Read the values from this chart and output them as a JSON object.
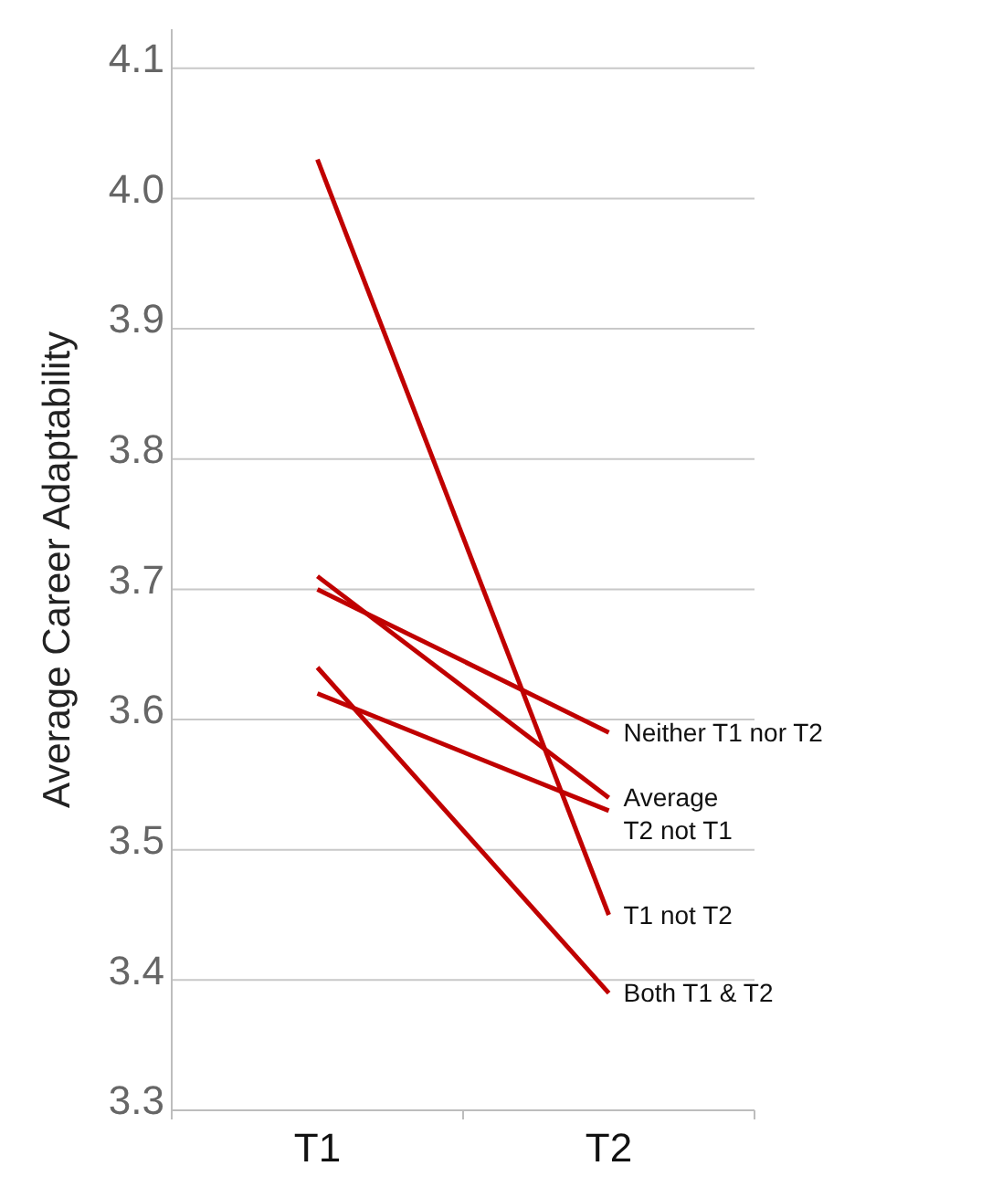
{
  "chart_data": {
    "type": "line",
    "ylabel": "Average Career Adaptability",
    "categories": [
      "T1",
      "T2"
    ],
    "ylim": [
      3.3,
      4.13
    ],
    "yticks": [
      3.3,
      3.4,
      3.5,
      3.6,
      3.7,
      3.8,
      3.9,
      {
        "value": 4.0,
        "label": "4.0"
      },
      4.1
    ],
    "grid": "y",
    "marker": "none",
    "line_style": "solid",
    "series": [
      {
        "name": "Neither T1 nor T2",
        "color": "#c00000",
        "values": [
          3.7,
          3.59
        ]
      },
      {
        "name": "Average",
        "color": "#c00000",
        "values": [
          3.71,
          3.54
        ]
      },
      {
        "name": "T2 not T1",
        "color": "#c00000",
        "values": [
          3.62,
          3.53
        ]
      },
      {
        "name": "T1 not T2",
        "color": "#c00000",
        "values": [
          4.03,
          3.45
        ]
      },
      {
        "name": "Both T1 & T2",
        "color": "#c00000",
        "values": [
          3.64,
          3.39
        ]
      }
    ]
  }
}
